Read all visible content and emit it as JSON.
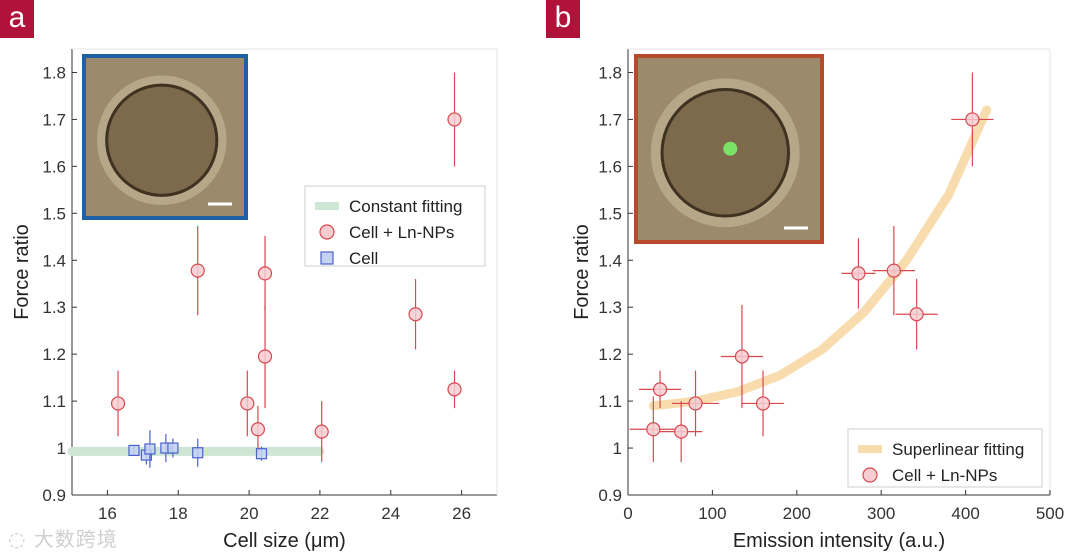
{
  "panels": {
    "a": {
      "badge": "a"
    },
    "b": {
      "badge": "b"
    }
  },
  "watermark": {
    "text": "大数跨境"
  },
  "colors": {
    "badge": "#b0123a",
    "red": "#d9484f",
    "red_fill": "#f6cdd0",
    "blue": "#4a63c9",
    "blue_fill": "#c6d2f3",
    "green_fit": "#cfe6d4",
    "orange_fit": "#f8dcae",
    "inset_a_border": "#1f5fa3",
    "inset_b_border": "#b64a2a"
  },
  "chart_data": [
    {
      "id": "a",
      "type": "scatter",
      "xlabel": "Cell size (μm)",
      "ylabel": "Force ratio",
      "xlim": [
        15,
        27
      ],
      "ylim": [
        0.9,
        1.85
      ],
      "xticks": [
        16,
        18,
        20,
        22,
        24,
        26
      ],
      "yticks": [
        0.9,
        1,
        1.1,
        1.2,
        1.3,
        1.4,
        1.5,
        1.6,
        1.7,
        1.8
      ],
      "ytick_labels": [
        "0.9",
        "1",
        "1.1",
        "1.2",
        "1.3",
        "1.4",
        "1.5",
        "1.6",
        "1.7",
        "1.8"
      ],
      "legend": {
        "position": "right",
        "entries": [
          "Constant fitting",
          "Cell + Ln-NPs",
          "Cell"
        ]
      },
      "fit": {
        "name": "Constant fitting",
        "x": [
          15,
          22
        ],
        "y": [
          0.993,
          0.993
        ]
      },
      "series": [
        {
          "name": "Cell + Ln-NPs",
          "marker": "circle",
          "points": [
            {
              "x": 16.3,
              "y": 1.095,
              "yerr": 0.07
            },
            {
              "x": 18.55,
              "y": 1.378,
              "yerr": 0.095
            },
            {
              "x": 19.95,
              "y": 1.095,
              "yerr": 0.07
            },
            {
              "x": 20.25,
              "y": 1.04,
              "yerr": 0.05
            },
            {
              "x": 20.45,
              "y": 1.372,
              "yerr": 0.08
            },
            {
              "x": 20.45,
              "y": 1.195,
              "yerr": 0.11
            },
            {
              "x": 22.05,
              "y": 1.035,
              "yerr": 0.065
            },
            {
              "x": 24.7,
              "y": 1.285,
              "yerr": 0.075
            },
            {
              "x": 25.8,
              "y": 1.7,
              "yerr": 0.1
            },
            {
              "x": 25.8,
              "y": 1.125,
              "yerr": 0.04
            }
          ]
        },
        {
          "name": "Cell",
          "marker": "square",
          "points": [
            {
              "x": 16.75,
              "y": 0.995,
              "yerr": 0.01
            },
            {
              "x": 17.1,
              "y": 0.985,
              "yerr": 0.02
            },
            {
              "x": 17.2,
              "y": 0.998,
              "yerr": 0.04
            },
            {
              "x": 17.65,
              "y": 1.0,
              "yerr": 0.03
            },
            {
              "x": 17.85,
              "y": 1.0,
              "yerr": 0.02
            },
            {
              "x": 18.55,
              "y": 0.99,
              "yerr": 0.03
            },
            {
              "x": 20.35,
              "y": 0.988,
              "yerr": 0.015
            }
          ]
        }
      ]
    },
    {
      "id": "b",
      "type": "scatter",
      "xlabel": "Emission intensity (a.u.)",
      "ylabel": "Force ratio",
      "xlim": [
        0,
        500
      ],
      "ylim": [
        0.9,
        1.85
      ],
      "xticks": [
        0,
        100,
        200,
        300,
        400,
        500
      ],
      "yticks": [
        0.9,
        1,
        1.1,
        1.2,
        1.3,
        1.4,
        1.5,
        1.6,
        1.7,
        1.8
      ],
      "ytick_labels": [
        "0.9",
        "1",
        "1.1",
        "1.2",
        "1.3",
        "1.4",
        "1.5",
        "1.6",
        "1.7",
        "1.8"
      ],
      "legend": {
        "position": "bottom-right",
        "entries": [
          "Superlinear fitting",
          "Cell + Ln-NPs"
        ]
      },
      "fit": {
        "name": "Superlinear fitting",
        "x": [
          30,
          80,
          130,
          180,
          230,
          280,
          330,
          380,
          425
        ],
        "y": [
          1.09,
          1.1,
          1.12,
          1.155,
          1.21,
          1.29,
          1.4,
          1.54,
          1.72
        ]
      },
      "series": [
        {
          "name": "Cell + Ln-NPs",
          "marker": "circle",
          "points": [
            {
              "x": 30,
              "y": 1.04,
              "xerr": 28,
              "yerr": 0.07
            },
            {
              "x": 38,
              "y": 1.125,
              "xerr": 25,
              "yerr": 0.04
            },
            {
              "x": 63,
              "y": 1.035,
              "xerr": 25,
              "yerr": 0.065
            },
            {
              "x": 80,
              "y": 1.095,
              "xerr": 28,
              "yerr": 0.07
            },
            {
              "x": 135,
              "y": 1.195,
              "xerr": 25,
              "yerr": 0.11
            },
            {
              "x": 160,
              "y": 1.095,
              "xerr": 25,
              "yerr": 0.07
            },
            {
              "x": 273,
              "y": 1.372,
              "xerr": 20,
              "yerr": 0.075
            },
            {
              "x": 315,
              "y": 1.378,
              "xerr": 25,
              "yerr": 0.095
            },
            {
              "x": 342,
              "y": 1.285,
              "xerr": 25,
              "yerr": 0.075
            },
            {
              "x": 408,
              "y": 1.7,
              "xerr": 25,
              "yerr": 0.1
            }
          ]
        }
      ]
    }
  ]
}
